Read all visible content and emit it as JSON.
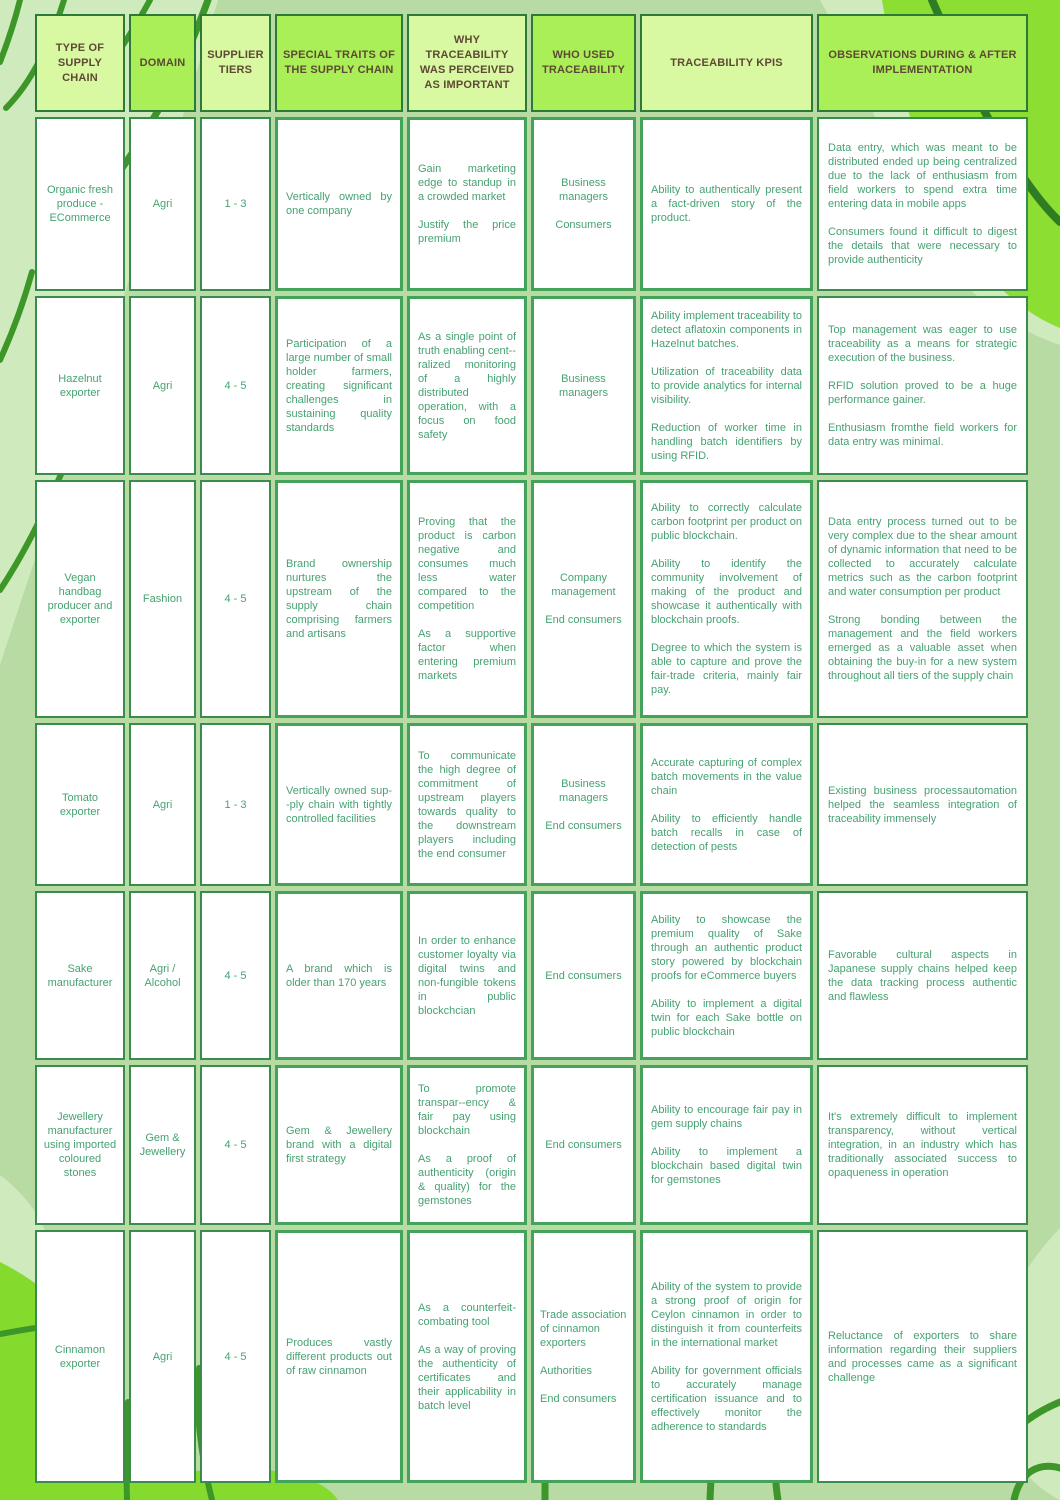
{
  "palette": {
    "header-light": "#d8f8a2",
    "header-bright": "#aaef57",
    "header-border": "#2c7a36",
    "header-text": "#5e4934",
    "body-border": "#3a8b4e",
    "body-border-bright": "#43a35b",
    "body-text": "#46a271",
    "page-bg": "#b8dba3",
    "leaf-light": "#cfeabc",
    "leaf-bright": "#8dde33",
    "stem-dark": "#3c9628"
  },
  "table": {
    "columns": [
      {
        "key": "type",
        "label": "TYPE OF SUPPLY CHAIN"
      },
      {
        "key": "domain",
        "label": "DOMAIN"
      },
      {
        "key": "tiers",
        "label": "SUPPLIER TIERS"
      },
      {
        "key": "traits",
        "label": "SPECIAL TRAITS OF THE SUPPLY CHAIN"
      },
      {
        "key": "why",
        "label": "WHY TRACEABILITY WAS PERCEIVED AS IMPORTANT"
      },
      {
        "key": "who",
        "label": "WHO USED TRACEABILITY"
      },
      {
        "key": "kpis",
        "label": "TRACEABILITY KPIS"
      },
      {
        "key": "observations",
        "label": "OBSERVATIONS DURING & AFTER IMPLEMENTATION"
      }
    ],
    "rows": [
      {
        "type": "Organic fresh produce - ECommerce",
        "domain": "Agri",
        "tiers": "1 - 3",
        "traits": [
          "Vertically owned by one company"
        ],
        "why": [
          "Gain marketing edge to standup in a crowded market",
          "Justify the price premium"
        ],
        "who": [
          "Business managers",
          "Consumers"
        ],
        "kpis": [
          "Ability to authentically present a fact-driven story of the product."
        ],
        "observations": [
          "Data entry, which was meant to be distributed ended up being centralized due to the lack of enthusiasm from field workers to spend extra time entering data in mobile apps",
          "Consumers found it difficult to digest the details that were necessary to provide authenticity"
        ]
      },
      {
        "type": "Hazelnut exporter",
        "domain": "Agri",
        "tiers": "4 - 5",
        "traits": [
          "Participation of a large number of small holder farmers, creating significant challenges in sustaining quality standards"
        ],
        "why": [
          "As a single point of truth enabling cent--ralized monitoring of a highly distributed operation, with a focus on food safety"
        ],
        "who": [
          "Business managers"
        ],
        "kpis": [
          "Ability implement traceability to detect aflatoxin components in Hazelnut batches.",
          "Utilization of traceability data to provide analytics for internal visibility.",
          "Reduction of worker time in handling batch identifiers by using RFID."
        ],
        "observations": [
          "Top management was eager to use traceability as a means for strategic execution of the business.",
          "RFID solution proved to be a huge performance gainer.",
          "Enthusiasm fromthe field workers for data entry was minimal."
        ]
      },
      {
        "type": "Vegan handbag producer and exporter",
        "domain": "Fashion",
        "tiers": "4 - 5",
        "traits": [
          "Brand ownership nurtures the upstream of the supply chain comprising farmers and artisans"
        ],
        "why": [
          "Proving that the product is carbon negative and consumes much less water compared to the competition",
          "As a supportive factor when entering premium markets"
        ],
        "who": [
          "Company management",
          "End consumers"
        ],
        "kpis": [
          "Ability to correctly calculate carbon footprint per product on public blockchain.",
          "Ability to identify the community involvement of making of the product and showcase it authentically with blockchain proofs.",
          "Degree to which the system is able to capture and prove the fair-trade criteria, mainly fair pay."
        ],
        "observations": [
          "Data entry process turned out to be very complex due to the shear amount of dynamic information that need to be collected to accurately calculate metrics such as the carbon footprint and water consumption per product",
          "Strong bonding between the management and the field workers emerged as a valuable asset when obtaining the buy-in for a new system throughout all tiers of the supply chain"
        ]
      },
      {
        "type": "Tomato exporter",
        "domain": "Agri",
        "tiers": "1 - 3",
        "traits": [
          "Vertically owned sup--ply chain with tightly controlled facilities"
        ],
        "why": [
          "To communicate the high degree of commitment of upstream players towards quality to the downstream players including the end consumer"
        ],
        "who": [
          "Business managers",
          "End consumers"
        ],
        "kpis": [
          "Accurate capturing of complex batch movements in the value chain",
          "Ability to efficiently handle batch recalls in case of detection of pests"
        ],
        "observations": [
          "Existing business processautomation helped the seamless integration of traceability immensely"
        ]
      },
      {
        "type": "Sake manufacturer",
        "domain": "Agri / Alcohol",
        "tiers": "4 - 5",
        "traits": [
          "A brand which is older than 170 years"
        ],
        "why": [
          "In order to enhance customer loyalty via digital twins and non-fungible tokens in public blockchcian"
        ],
        "who": [
          "End consumers"
        ],
        "kpis": [
          "Ability to showcase the premium quality of Sake through an authentic product story powered by blockchain proofs for eCommerce buyers",
          "Ability to implement a digital twin for each Sake bottle on public blockchain"
        ],
        "observations": [
          "Favorable cultural aspects in Japanese supply chains helped keep the data tracking process authentic and flawless"
        ]
      },
      {
        "type": "Jewellery manufacturer using imported coloured stones",
        "domain": "Gem & Jewellery",
        "tiers": "4 - 5",
        "traits": [
          "Gem & Jewellery brand with a digital first strategy"
        ],
        "why": [
          "To promote transpar--ency & fair pay using blockchain",
          "As a proof of authenticity (origin & quality) for the gemstones"
        ],
        "who": [
          "End consumers"
        ],
        "kpis": [
          "Ability to encourage fair pay in gem supply chains",
          "Ability to implement a blockchain based digital twin for gemstones"
        ],
        "observations": [
          "It's extremely difficult to implement transparency, without vertical integration, in an industry which has traditionally associated success to opaqueness in operation"
        ]
      },
      {
        "type": "Cinnamon exporter",
        "domain": "Agri",
        "tiers": "4 - 5",
        "traits": [
          "Produces vastly different products out of raw cinnamon"
        ],
        "why": [
          "As a counterfeit-combating tool",
          "As a way of proving the authenticity of certificates and their applicability in batch level"
        ],
        "who": [
          "Trade association of cinnamon exporters",
          "Authorities",
          "End consumers"
        ],
        "kpis": [
          "Ability of the system to provide a strong proof of origin for Ceylon cinnamon in order to distinguish it from counterfeits in the international market",
          "Ability for government officials to accurately manage certification issuance and to effectively monitor the adherence to standards"
        ],
        "observations": [
          "Reluctance of exporters to share information regarding their suppliers and processes came as a significant challenge"
        ]
      }
    ]
  }
}
